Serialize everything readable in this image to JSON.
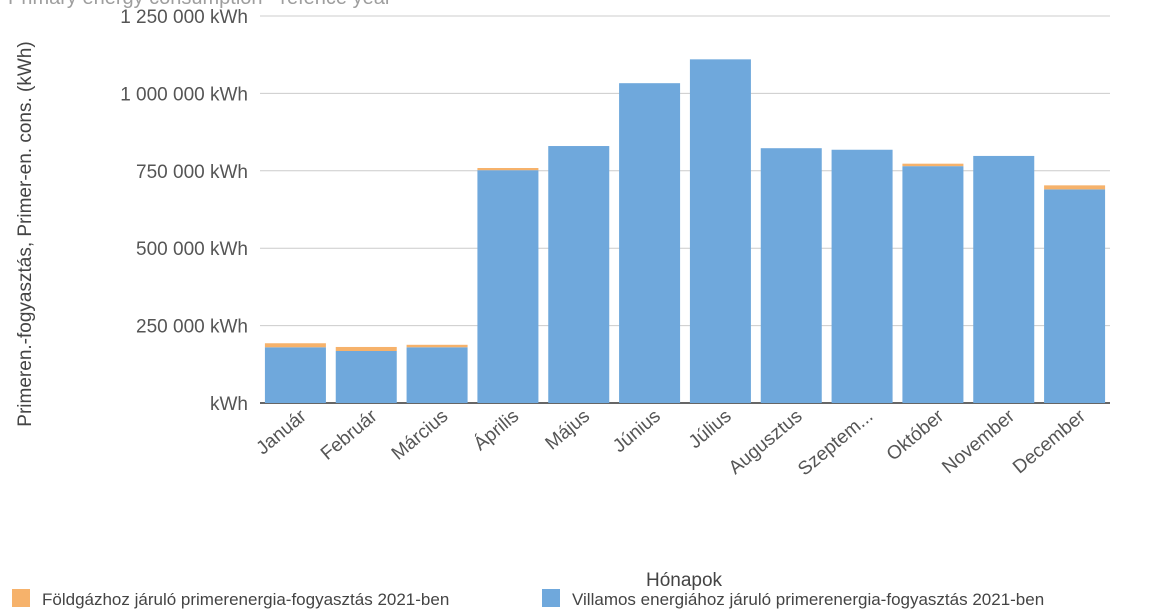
{
  "chart_data": {
    "type": "bar",
    "stacked": true,
    "title": "Primary energy consumption - refence year",
    "xlabel": "Hónapok",
    "ylabel": "Primeren.-fogyasztás, Primer-en. cons. (kWh)",
    "ylim": [
      0,
      1250000
    ],
    "yticks": [
      {
        "value": 0,
        "label": "kWh"
      },
      {
        "value": 250000,
        "label": "250 000  kWh"
      },
      {
        "value": 500000,
        "label": "500 000  kWh"
      },
      {
        "value": 750000,
        "label": "750 000  kWh"
      },
      {
        "value": 1000000,
        "label": "1 000 000  kWh"
      },
      {
        "value": 1250000,
        "label": "1 250 000  kWh"
      }
    ],
    "categories": [
      "Január",
      "Február",
      "Március",
      "Április",
      "Május",
      "Június",
      "Július",
      "Augusztus",
      "Szeptem...",
      "Október",
      "November",
      "December"
    ],
    "series": [
      {
        "name": "Villamos energiához járuló primerenergia-fogyasztás 2021-ben",
        "color": "#6fa8dc",
        "values": [
          180000,
          168000,
          180000,
          752000,
          830000,
          1033000,
          1110000,
          823000,
          818000,
          765000,
          798000,
          690000
        ]
      },
      {
        "name": "Földgázhoz járuló primerenergia-fogyasztás 2021-ben",
        "color": "#f6b26b",
        "values": [
          13000,
          13000,
          8000,
          7000,
          0,
          0,
          0,
          0,
          0,
          8000,
          0,
          13000
        ]
      }
    ],
    "legend_order": [
      1,
      0
    ],
    "grid": true,
    "legend_position": "bottom"
  }
}
